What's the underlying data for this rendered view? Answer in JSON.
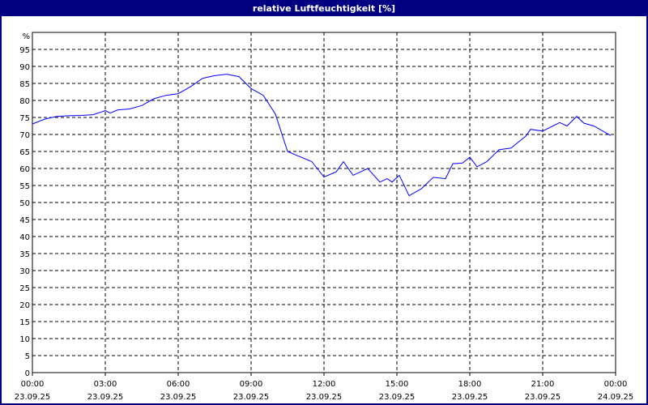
{
  "chart_data": {
    "type": "line",
    "title": "relative Luftfeuchtigkeit [%]",
    "ylabel": "%",
    "ylim": [
      0,
      100
    ],
    "yticks": [
      0,
      5,
      10,
      15,
      20,
      25,
      30,
      35,
      40,
      45,
      50,
      55,
      60,
      65,
      70,
      75,
      80,
      85,
      90,
      95
    ],
    "xlim_hours": [
      0,
      24
    ],
    "xticks": [
      {
        "time": "00:00",
        "date": "23.09.25"
      },
      {
        "time": "03:00",
        "date": "23.09.25"
      },
      {
        "time": "06:00",
        "date": "23.09.25"
      },
      {
        "time": "09:00",
        "date": "23.09.25"
      },
      {
        "time": "12:00",
        "date": "23.09.25"
      },
      {
        "time": "15:00",
        "date": "23.09.25"
      },
      {
        "time": "18:00",
        "date": "23.09.25"
      },
      {
        "time": "21:00",
        "date": "23.09.25"
      },
      {
        "time": "00:00",
        "date": "24.09.25"
      }
    ],
    "grid": true,
    "line_color": "#0000ff",
    "series": [
      {
        "x_hours": [
          0,
          0.5,
          1,
          1.5,
          2,
          2.5,
          3,
          3.2,
          3.5,
          4,
          4.5,
          5,
          5.5,
          6,
          6.5,
          7,
          7.5,
          8,
          8.5,
          9,
          9.5,
          10,
          10.5,
          11,
          11.5,
          12,
          12.5,
          12.8,
          13.2,
          13.5,
          13.8,
          14.3,
          14.6,
          14.8,
          15.1,
          15.5,
          16,
          16.5,
          17,
          17.3,
          17.7,
          18,
          18.3,
          18.7,
          19.2,
          19.7,
          20.3,
          20.5,
          21,
          21.7,
          22,
          22.4,
          22.7,
          23.1,
          23.8
        ],
        "values": [
          73.1,
          74.5,
          75.3,
          75.5,
          75.6,
          75.8,
          77.0,
          76.3,
          77.2,
          77.5,
          78.5,
          80.5,
          81.5,
          82.0,
          84.0,
          86.5,
          87.3,
          87.7,
          87.0,
          83.5,
          81.5,
          76.0,
          65.0,
          63.5,
          62.0,
          57.5,
          59.0,
          62.0,
          58.0,
          59.0,
          60.0,
          56.0,
          57.0,
          56.0,
          58.0,
          52.0,
          54.0,
          57.4,
          57.0,
          61.4,
          61.6,
          63.3,
          60.5,
          62.0,
          65.5,
          66.0,
          69.5,
          71.5,
          71.0,
          73.5,
          72.5,
          75.3,
          73.3,
          72.5,
          69.7
        ]
      }
    ]
  }
}
